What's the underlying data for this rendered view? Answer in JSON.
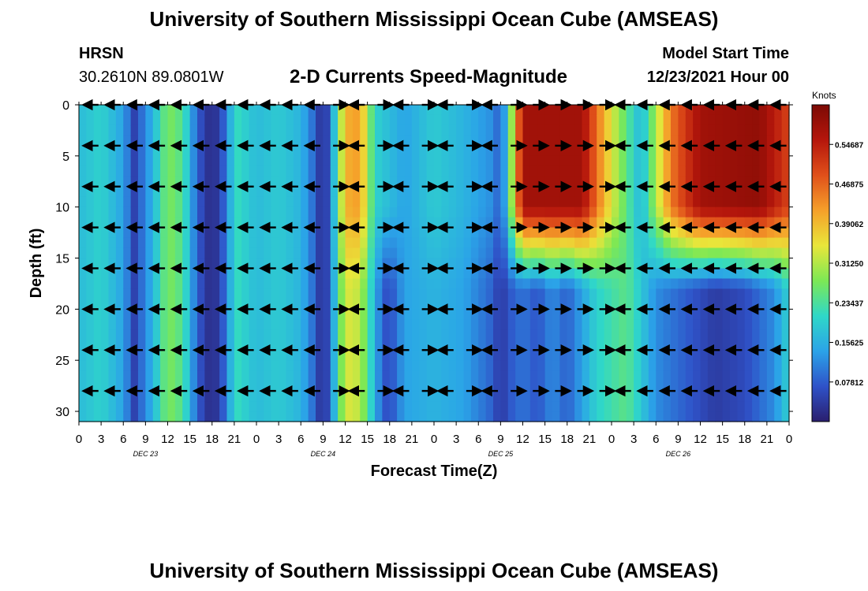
{
  "page": {
    "title": "University of Southern Mississippi Ocean Cube (AMSEAS)",
    "bottom_title": "University of Southern Mississippi Ocean Cube (AMSEAS)",
    "station": "HRSN",
    "coords": "30.2610N  89.0801W",
    "subtitle": "2-D Currents Speed-Magnitude",
    "model_label": "Model Start Time",
    "model_value": "12/23/2021 Hour 00"
  },
  "colors": {
    "scale": [
      "#2a1e6e",
      "#2f52c8",
      "#2ba3e8",
      "#2fd8c8",
      "#7ce855",
      "#e9e63a",
      "#f5a02a",
      "#e0501a",
      "#b5160c",
      "#7c0a04"
    ]
  },
  "chart_data": {
    "type": "heatmap",
    "title": "2-D Currents Speed-Magnitude",
    "xlabel": "Forecast Time(Z)",
    "ylabel": "Depth (ft)",
    "colorbar_label": "Knots",
    "colorbar_ticks": [
      "0.54687",
      "0.46875",
      "0.39062",
      "0.31250",
      "0.23437",
      "0.15625",
      "0.07812"
    ],
    "colorbar_range": [
      0.0,
      0.625
    ],
    "x_tick_labels": [
      "0",
      "3",
      "6",
      "9",
      "12",
      "15",
      "18",
      "21",
      "0",
      "3",
      "6",
      "9",
      "12",
      "15",
      "18",
      "21",
      "0",
      "3",
      "6",
      "9",
      "12",
      "15",
      "18",
      "21",
      "0",
      "3",
      "6",
      "9",
      "12",
      "15",
      "18",
      "21",
      "0"
    ],
    "day_labels": [
      "DEC 23",
      "DEC 24",
      "DEC 25",
      "DEC 26"
    ],
    "x_range_hours": [
      0,
      96
    ],
    "y_range_ft": [
      0,
      31
    ],
    "y_ticks": [
      "0",
      "5",
      "10",
      "15",
      "20",
      "25",
      "30"
    ],
    "arrow_depths_ft": [
      0,
      4,
      8,
      12,
      16,
      20,
      24,
      28
    ],
    "arrow_hours": [
      2,
      5,
      8,
      11,
      14,
      17,
      20,
      23,
      26,
      29,
      32,
      35,
      38,
      41,
      44,
      47,
      50,
      53,
      56,
      59,
      62,
      65,
      68,
      71,
      74,
      77,
      80,
      83,
      86,
      89,
      92,
      95
    ],
    "speed_profile_upper_knots": [
      {
        "hour": 0,
        "knots": 0.17
      },
      {
        "hour": 3,
        "knots": 0.2
      },
      {
        "hour": 6,
        "knots": 0.14
      },
      {
        "hour": 7.5,
        "knots": 0.05
      },
      {
        "hour": 10,
        "knots": 0.16
      },
      {
        "hour": 12,
        "knots": 0.28
      },
      {
        "hour": 14,
        "knots": 0.24
      },
      {
        "hour": 16,
        "knots": 0.08
      },
      {
        "hour": 18,
        "knots": 0.01
      },
      {
        "hour": 20,
        "knots": 0.1
      },
      {
        "hour": 21,
        "knots": 0.22
      },
      {
        "hour": 24,
        "knots": 0.17
      },
      {
        "hour": 27,
        "knots": 0.19
      },
      {
        "hour": 30,
        "knots": 0.16
      },
      {
        "hour": 32,
        "knots": 0.08
      },
      {
        "hour": 33,
        "knots": 0.005
      },
      {
        "hour": 34,
        "knots": 0.1
      },
      {
        "hour": 36,
        "knots": 0.4
      },
      {
        "hour": 38,
        "knots": 0.42
      },
      {
        "hour": 40,
        "knots": 0.2
      },
      {
        "hour": 44,
        "knots": 0.14
      },
      {
        "hour": 48,
        "knots": 0.19
      },
      {
        "hour": 52,
        "knots": 0.16
      },
      {
        "hour": 56,
        "knots": 0.12
      },
      {
        "hour": 57,
        "knots": 0.07
      },
      {
        "hour": 58,
        "knots": 0.2
      },
      {
        "hour": 60,
        "knots": 0.58
      },
      {
        "hour": 68,
        "knots": 0.58
      },
      {
        "hour": 72,
        "knots": 0.34
      },
      {
        "hour": 76,
        "knots": 0.16
      },
      {
        "hour": 80,
        "knots": 0.45
      },
      {
        "hour": 84,
        "knots": 0.58
      },
      {
        "hour": 92,
        "knots": 0.6
      },
      {
        "hour": 96,
        "knots": 0.5
      }
    ],
    "speed_profile_lower_knots": [
      {
        "hour": 0,
        "knots": 0.17
      },
      {
        "hour": 3,
        "knots": 0.2
      },
      {
        "hour": 6,
        "knots": 0.14
      },
      {
        "hour": 7.5,
        "knots": 0.05
      },
      {
        "hour": 10,
        "knots": 0.16
      },
      {
        "hour": 12,
        "knots": 0.28
      },
      {
        "hour": 14,
        "knots": 0.24
      },
      {
        "hour": 16,
        "knots": 0.08
      },
      {
        "hour": 18,
        "knots": 0.01
      },
      {
        "hour": 20,
        "knots": 0.1
      },
      {
        "hour": 21,
        "knots": 0.22
      },
      {
        "hour": 24,
        "knots": 0.17
      },
      {
        "hour": 27,
        "knots": 0.19
      },
      {
        "hour": 30,
        "knots": 0.16
      },
      {
        "hour": 32,
        "knots": 0.08
      },
      {
        "hour": 33,
        "knots": 0.005
      },
      {
        "hour": 34,
        "knots": 0.1
      },
      {
        "hour": 36,
        "knots": 0.34
      },
      {
        "hour": 38,
        "knots": 0.32
      },
      {
        "hour": 40,
        "knots": 0.16
      },
      {
        "hour": 41,
        "knots": 0.08
      },
      {
        "hour": 42,
        "knots": 0.06
      },
      {
        "hour": 44,
        "knots": 0.14
      },
      {
        "hour": 48,
        "knots": 0.16
      },
      {
        "hour": 52,
        "knots": 0.14
      },
      {
        "hour": 56,
        "knots": 0.08
      },
      {
        "hour": 57,
        "knots": 0.03
      },
      {
        "hour": 58,
        "knots": 0.07
      },
      {
        "hour": 60,
        "knots": 0.1
      },
      {
        "hour": 62,
        "knots": 0.07
      },
      {
        "hour": 64,
        "knots": 0.12
      },
      {
        "hour": 66,
        "knots": 0.08
      },
      {
        "hour": 70,
        "knots": 0.2
      },
      {
        "hour": 74,
        "knots": 0.25
      },
      {
        "hour": 78,
        "knots": 0.12
      },
      {
        "hour": 82,
        "knots": 0.08
      },
      {
        "hour": 86,
        "knots": 0.04
      },
      {
        "hour": 90,
        "knots": 0.06
      },
      {
        "hour": 94,
        "knots": 0.12
      },
      {
        "hour": 96,
        "knots": 0.2
      }
    ]
  }
}
